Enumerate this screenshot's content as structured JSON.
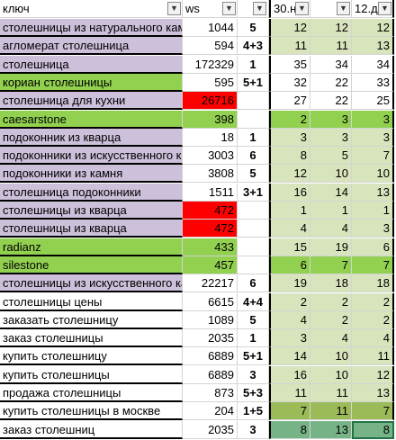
{
  "header": {
    "col0": "ключ",
    "col1": "ws",
    "col2": "",
    "col3": "30.н",
    "col4": "",
    "col5": "12.д",
    "filter_glyph": "▼"
  },
  "colors": {
    "purple": "#ccc0da",
    "green": "#92d050",
    "red": "#ff0000",
    "light_green": "#d8e4bc",
    "dark_green": "#9bbb59",
    "teal": "#76b387"
  },
  "rows": [
    {
      "key": "столешницы из натурального камня",
      "ws": "1044",
      "n": "5",
      "a": "12",
      "b": "12",
      "c": "12",
      "bg_key": "purple",
      "bg_ws": "white",
      "bg_vals": "lgreen"
    },
    {
      "key": "агломерат столешница",
      "ws": "594",
      "n": "4+3",
      "a": "11",
      "b": "11",
      "c": "13",
      "bg_key": "purple",
      "bg_ws": "white",
      "bg_vals": "lgreen"
    },
    {
      "key": "столешница",
      "ws": "172329",
      "n": "1",
      "a": "35",
      "b": "34",
      "c": "34",
      "bg_key": "purple",
      "bg_ws": "white",
      "bg_vals": "white"
    },
    {
      "key": "кориан столешницы",
      "ws": "595",
      "n": "5+1",
      "a": "32",
      "b": "22",
      "c": "33",
      "bg_key": "green",
      "bg_ws": "white",
      "bg_vals": "white"
    },
    {
      "key": "столешница для кухни",
      "ws": "26716",
      "n": "",
      "a": "27",
      "b": "22",
      "c": "25",
      "bg_key": "purple",
      "bg_ws": "red",
      "bg_vals": "white"
    },
    {
      "key": "caesarstone",
      "ws": "398",
      "n": "",
      "a": "2",
      "b": "3",
      "c": "3",
      "bg_key": "green",
      "bg_ws": "green",
      "bg_vals": "green"
    },
    {
      "key": "подоконник из кварца",
      "ws": "18",
      "n": "1",
      "a": "3",
      "b": "3",
      "c": "3",
      "bg_key": "purple",
      "bg_ws": "white",
      "bg_vals": "lgreen"
    },
    {
      "key": "подоконники из искусственного камня",
      "ws": "3003",
      "n": "6",
      "a": "8",
      "b": "5",
      "c": "7",
      "bg_key": "purple",
      "bg_ws": "white",
      "bg_vals": "lgreen"
    },
    {
      "key": "подоконники из камня",
      "ws": "3808",
      "n": "5",
      "a": "12",
      "b": "10",
      "c": "10",
      "bg_key": "purple",
      "bg_ws": "white",
      "bg_vals": "lgreen"
    },
    {
      "key": "столешница подоконники",
      "ws": "1511",
      "n": "3+1",
      "a": "16",
      "b": "14",
      "c": "13",
      "bg_key": "purple",
      "bg_ws": "white",
      "bg_vals": "lgreen"
    },
    {
      "key": "столешницы из кварца",
      "ws": "472",
      "n": "",
      "a": "1",
      "b": "1",
      "c": "1",
      "bg_key": "purple",
      "bg_ws": "red",
      "bg_vals": "lgreen"
    },
    {
      "key": "столешницы из кварца",
      "ws": "472",
      "n": "",
      "a": "4",
      "b": "4",
      "c": "3",
      "bg_key": "purple",
      "bg_ws": "red",
      "bg_vals": "lgreen"
    },
    {
      "key": "radianz",
      "ws": "433",
      "n": "",
      "a": "15",
      "b": "19",
      "c": "6",
      "bg_key": "green",
      "bg_ws": "green",
      "bg_vals": "lgreen"
    },
    {
      "key": "silestone",
      "ws": "457",
      "n": "",
      "a": "6",
      "b": "7",
      "c": "7",
      "bg_key": "green",
      "bg_ws": "green",
      "bg_vals": "green"
    },
    {
      "key": "столешницы из искусственного камня",
      "ws": "22217",
      "n": "6",
      "a": "19",
      "b": "18",
      "c": "18",
      "bg_key": "purple",
      "bg_ws": "white",
      "bg_vals": "lgreen"
    },
    {
      "key": "столешницы цены",
      "ws": "6615",
      "n": "4+4",
      "a": "2",
      "b": "2",
      "c": "2",
      "bg_key": "white",
      "bg_ws": "white",
      "bg_vals": "lgreen"
    },
    {
      "key": "заказать столешницу",
      "ws": "1089",
      "n": "5",
      "a": "4",
      "b": "2",
      "c": "2",
      "bg_key": "white",
      "bg_ws": "white",
      "bg_vals": "lgreen"
    },
    {
      "key": "заказ столешницы",
      "ws": "2035",
      "n": "1",
      "a": "3",
      "b": "4",
      "c": "4",
      "bg_key": "white",
      "bg_ws": "white",
      "bg_vals": "lgreen"
    },
    {
      "key": "купить столешницу",
      "ws": "6889",
      "n": "5+1",
      "a": "14",
      "b": "10",
      "c": "11",
      "bg_key": "white",
      "bg_ws": "white",
      "bg_vals": "lgreen"
    },
    {
      "key": "купить столешницы",
      "ws": "6889",
      "n": "3",
      "a": "16",
      "b": "10",
      "c": "12",
      "bg_key": "white",
      "bg_ws": "white",
      "bg_vals": "lgreen"
    },
    {
      "key": "продажа столешницы",
      "ws": "873",
      "n": "5+3",
      "a": "11",
      "b": "11",
      "c": "13",
      "bg_key": "white",
      "bg_ws": "white",
      "bg_vals": "lgreen"
    },
    {
      "key": "купить столешницы в москве",
      "ws": "204",
      "n": "1+5",
      "a": "7",
      "b": "11",
      "c": "7",
      "bg_key": "white",
      "bg_ws": "white",
      "bg_vals": "grn2"
    },
    {
      "key": "заказ столешниц",
      "ws": "2035",
      "n": "3",
      "a": "8",
      "b": "13",
      "c": "8",
      "bg_key": "white",
      "bg_ws": "white",
      "bg_vals": "teal"
    }
  ]
}
